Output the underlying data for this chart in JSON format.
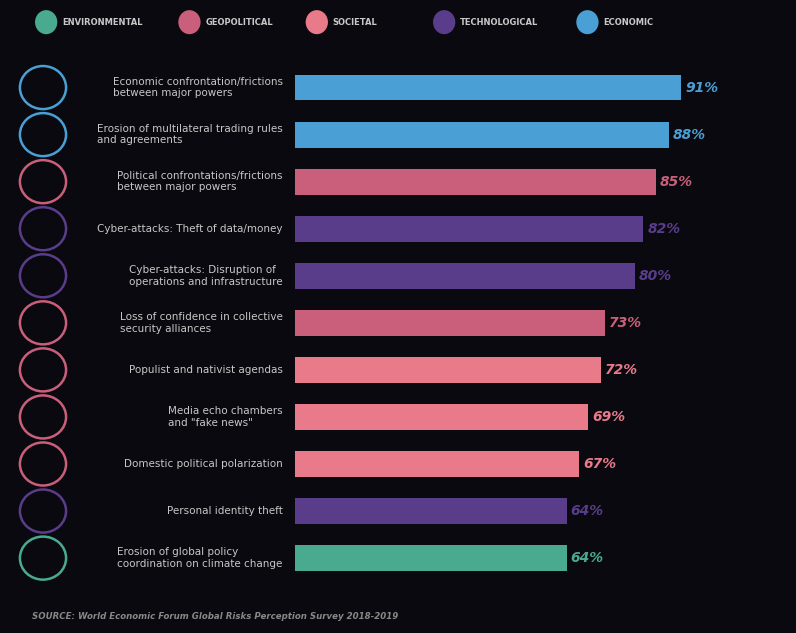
{
  "background_color": "#09090f",
  "categories": [
    "Economic confrontation/frictions\nbetween major powers",
    "Erosion of multilateral trading rules\nand agreements",
    "Political confrontations/frictions\nbetween major powers",
    "Cyber-attacks: Theft of data/money",
    "Cyber-attacks: Disruption of\noperations and infrastructure",
    "Loss of confidence in collective\nsecurity alliances",
    "Populist and nativist agendas",
    "Media echo chambers\nand \"fake news\"",
    "Domestic political polarization",
    "Personal identity theft",
    "Erosion of global policy\ncoordination on climate change"
  ],
  "values": [
    91,
    88,
    85,
    82,
    80,
    73,
    72,
    69,
    67,
    64,
    64
  ],
  "bar_colors": [
    "#4a9fd4",
    "#4a9fd4",
    "#c95f7a",
    "#5a3d8a",
    "#5a3d8a",
    "#c95f7a",
    "#e87a8a",
    "#e87a8a",
    "#e87a8a",
    "#5a3d8a",
    "#4aaa90"
  ],
  "value_colors": [
    "#4a9fd4",
    "#4a9fd4",
    "#c95f7a",
    "#5a3d8a",
    "#5a3d8a",
    "#c95f7a",
    "#e87a8a",
    "#e87a8a",
    "#e87a8a",
    "#5a3d8a",
    "#4aaa90"
  ],
  "icon_colors": [
    "#4a9fd4",
    "#4a9fd4",
    "#c95f7a",
    "#5a3d8a",
    "#5a3d8a",
    "#c95f7a",
    "#c95f7a",
    "#c95f7a",
    "#c95f7a",
    "#5a3d8a",
    "#4aaa90"
  ],
  "legend_items": [
    {
      "label": "ENVIRONMENTAL",
      "color": "#4aaa90"
    },
    {
      "label": "GEOPOLITICAL",
      "color": "#c95f7a"
    },
    {
      "label": "SOCIETAL",
      "color": "#e87a8a"
    },
    {
      "label": "TECHNOLOGICAL",
      "color": "#5a3d8a"
    },
    {
      "label": "ECONOMIC",
      "color": "#4a9fd4"
    }
  ],
  "source_text": "SOURCE: World Economic Forum Global Risks Perception Survey 2018-2019",
  "label_text_color": "#c8c8c8",
  "value_fontsize": 10,
  "label_fontsize": 7.5
}
